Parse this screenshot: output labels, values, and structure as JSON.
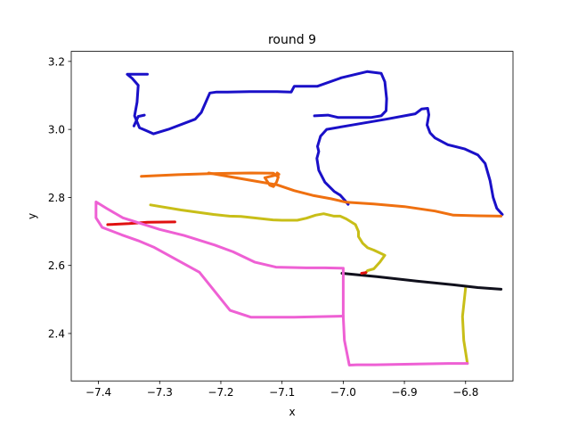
{
  "chart_data": {
    "type": "line",
    "title": "round 9",
    "xlabel": "x",
    "ylabel": "y",
    "xlim": [
      -7.4445,
      -6.7225
    ],
    "ylim": [
      2.2605,
      3.2295
    ],
    "xticks": [
      -7.4,
      -7.3,
      -7.2,
      -7.1,
      -7.0,
      -6.9,
      -6.8
    ],
    "xtick_labels": [
      "−7.4",
      "−7.3",
      "−7.2",
      "−7.1",
      "−7.0",
      "−6.9",
      "−6.8"
    ],
    "yticks": [
      2.4,
      2.6,
      2.8,
      3.0,
      3.2
    ],
    "ytick_labels": [
      "2.4",
      "2.6",
      "2.8",
      "3.0",
      "3.2"
    ],
    "grid": false,
    "series": [
      {
        "color": "#1a10c8",
        "x": [
          -6.992,
          -6.998,
          -7.005,
          -7.015,
          -7.03,
          -7.04,
          -7.043,
          -7.04,
          -7.042,
          -7.037,
          -7.027,
          -6.995,
          -6.93,
          -6.882,
          -6.872,
          -6.862,
          -6.86,
          -6.863,
          -6.858,
          -6.85,
          -6.829,
          -6.802,
          -6.78,
          -6.768,
          -6.76,
          -6.755,
          -6.749,
          -6.74
        ],
        "y": [
          2.78,
          2.793,
          2.807,
          2.818,
          2.845,
          2.88,
          2.915,
          2.935,
          2.95,
          2.98,
          3.0,
          3.01,
          3.03,
          3.046,
          3.06,
          3.062,
          3.043,
          3.013,
          2.99,
          2.975,
          2.955,
          2.943,
          2.925,
          2.9,
          2.85,
          2.8,
          2.768,
          2.75
        ]
      },
      {
        "color": "#1a10c8",
        "x": [
          -7.047,
          -7.025,
          -7.008,
          -6.985,
          -6.955,
          -6.938,
          -6.93,
          -6.929,
          -6.932,
          -6.938,
          -6.961,
          -7.003,
          -7.042,
          -7.08,
          -7.085,
          -7.108,
          -7.12,
          -7.132,
          -7.153,
          -7.189,
          -7.207,
          -7.218,
          -7.223,
          -7.232,
          -7.242,
          -7.286,
          -7.31,
          -7.321,
          -7.333,
          -7.341,
          -7.337,
          -7.335,
          -7.345,
          -7.353,
          -7.337,
          -7.32
        ],
        "y": [
          3.04,
          3.042,
          3.035,
          3.035,
          3.035,
          3.04,
          3.055,
          3.09,
          3.14,
          3.165,
          3.17,
          3.152,
          3.127,
          3.127,
          3.11,
          3.111,
          3.111,
          3.111,
          3.111,
          3.11,
          3.11,
          3.107,
          3.087,
          3.05,
          3.03,
          3.0,
          2.987,
          2.996,
          3.005,
          3.04,
          3.08,
          3.13,
          3.15,
          3.162,
          3.162,
          3.162
        ]
      },
      {
        "color": "#1a10c8",
        "x": [
          -7.342,
          -7.335,
          -7.325
        ],
        "y": [
          3.01,
          3.038,
          3.042
        ]
      },
      {
        "color": "#ef7010",
        "x": [
          -7.33,
          -7.27,
          -7.218,
          -7.15,
          -7.114,
          -7.106,
          -7.109,
          -7.114,
          -7.12,
          -7.128,
          -7.105,
          -7.108
        ],
        "y": [
          2.862,
          2.867,
          2.87,
          2.872,
          2.871,
          2.86,
          2.845,
          2.832,
          2.836,
          2.858,
          2.868,
          2.872
        ]
      },
      {
        "color": "#ef7010",
        "x": [
          -7.22,
          -7.15,
          -7.108,
          -7.08,
          -7.05,
          -7.02,
          -6.995,
          -6.95,
          -6.9,
          -6.85,
          -6.82,
          -6.78,
          -6.742
        ],
        "y": [
          2.872,
          2.85,
          2.837,
          2.82,
          2.806,
          2.796,
          2.786,
          2.781,
          2.773,
          2.76,
          2.748,
          2.746,
          2.745
        ]
      },
      {
        "color": "#c8be18",
        "x": [
          -7.315,
          -7.265,
          -7.212,
          -7.186,
          -7.167,
          -7.115,
          -7.1,
          -7.075,
          -7.06,
          -7.045,
          -7.032,
          -7.015,
          -7.005,
          -6.995,
          -6.98,
          -6.975,
          -6.975,
          -6.968,
          -6.96,
          -6.95,
          -6.938,
          -6.932,
          -6.94,
          -6.95,
          -6.96,
          -6.965
        ],
        "y": [
          2.778,
          2.763,
          2.75,
          2.745,
          2.744,
          2.734,
          2.733,
          2.733,
          2.739,
          2.748,
          2.752,
          2.745,
          2.745,
          2.737,
          2.72,
          2.7,
          2.685,
          2.665,
          2.652,
          2.645,
          2.635,
          2.63,
          2.61,
          2.59,
          2.585,
          2.575
        ]
      },
      {
        "color": "#c8be18",
        "x": [
          -6.8,
          -6.805,
          -6.803,
          -6.797
        ],
        "y": [
          2.535,
          2.45,
          2.38,
          2.312
        ]
      },
      {
        "color": "#10101c",
        "x": [
          -7.002,
          -6.945,
          -6.88,
          -6.82,
          -6.78,
          -6.742
        ],
        "y": [
          2.577,
          2.567,
          2.554,
          2.543,
          2.535,
          2.53
        ]
      },
      {
        "color": "#e01010",
        "x": [
          -7.385,
          -7.35,
          -7.32,
          -7.275
        ],
        "y": [
          2.72,
          2.723,
          2.727,
          2.728
        ]
      },
      {
        "color": "#e01010",
        "x": [
          -6.97,
          -6.963
        ],
        "y": [
          2.577,
          2.579
        ]
      },
      {
        "color": "#ee60d4",
        "x": [
          -7.0,
          -7.0,
          -6.998,
          -6.99,
          -6.978,
          -6.948,
          -6.88,
          -6.828,
          -6.797
        ],
        "y": [
          2.592,
          2.45,
          2.38,
          2.307,
          2.308,
          2.308,
          2.31,
          2.312,
          2.312
        ]
      },
      {
        "color": "#ee60d4",
        "x": [
          -7.002,
          -7.03,
          -7.06,
          -7.11,
          -7.145,
          -7.18,
          -7.21,
          -7.26,
          -7.3,
          -7.36,
          -7.386,
          -7.404,
          -7.404,
          -7.394,
          -7.362,
          -7.335,
          -7.31,
          -7.235,
          -7.185,
          -7.151,
          -7.08,
          -7.0
        ],
        "y": [
          2.592,
          2.593,
          2.593,
          2.595,
          2.61,
          2.64,
          2.66,
          2.688,
          2.706,
          2.74,
          2.767,
          2.787,
          2.74,
          2.712,
          2.69,
          2.673,
          2.654,
          2.58,
          2.468,
          2.448,
          2.448,
          2.451
        ]
      }
    ]
  }
}
